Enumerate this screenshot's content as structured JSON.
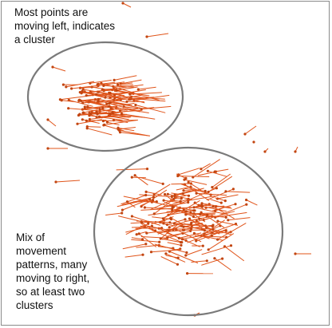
{
  "annotations": {
    "top_text": "Most points are\nmoving left, indicates\na cluster",
    "bottom_text": "Mix of\nmovement\npatterns, many\nmoving to right,\nso at least two\nclusters"
  },
  "colors": {
    "arrow": "#e0541a",
    "point": "#c24510",
    "ellipse": "#7a7a7a",
    "frame": "#8a8a8a"
  }
}
